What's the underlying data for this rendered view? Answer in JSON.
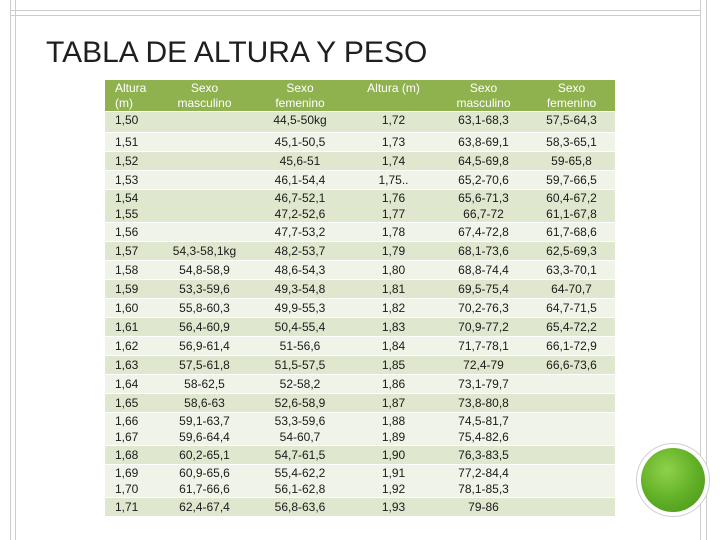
{
  "title": "TABLA DE ALTURA Y PESO",
  "header": {
    "col1": [
      "Altura",
      "(m)"
    ],
    "col2": [
      "Sexo",
      "masculino"
    ],
    "col3": [
      "Sexo",
      "femenino"
    ],
    "col4": [
      "Altura (m)"
    ],
    "col5": [
      "Sexo",
      "masculino"
    ],
    "col6": [
      "Sexo",
      "femenino"
    ]
  },
  "rows": [
    {
      "c1": [
        "1,50"
      ],
      "c2": [
        ""
      ],
      "c3": [
        "44,5-50kg"
      ],
      "c4": [
        "1,72"
      ],
      "c5": [
        "63,1-68,3"
      ],
      "c6": [
        "57,5-64,3"
      ]
    },
    {
      "c1": [
        "1,51"
      ],
      "c2": [
        ""
      ],
      "c3": [
        "45,1-50,5"
      ],
      "c4": [
        "1,73"
      ],
      "c5": [
        "63,8-69,1"
      ],
      "c6": [
        "58,3-65,1"
      ]
    },
    {
      "c1": [
        "1,52"
      ],
      "c2": [
        ""
      ],
      "c3": [
        "45,6-51"
      ],
      "c4": [
        "1,74"
      ],
      "c5": [
        "64,5-69,8"
      ],
      "c6": [
        "59-65,8"
      ]
    },
    {
      "c1": [
        "1,53"
      ],
      "c2": [
        ""
      ],
      "c3": [
        "46,1-54,4"
      ],
      "c4": [
        "1,75.."
      ],
      "c5": [
        "65,2-70,6"
      ],
      "c6": [
        "59,7-66,5"
      ]
    },
    {
      "c1": [
        "1,54",
        "1,55"
      ],
      "c2": [
        ""
      ],
      "c3": [
        "46,7-52,1",
        "47,2-52,6"
      ],
      "c4": [
        "1,76",
        "1,77"
      ],
      "c5": [
        "65,6-71,3",
        "66,7-72"
      ],
      "c6": [
        "60,4-67,2",
        "61,1-67,8"
      ]
    },
    {
      "c1": [
        "1,56"
      ],
      "c2": [
        ""
      ],
      "c3": [
        "47,7-53,2"
      ],
      "c4": [
        "1,78"
      ],
      "c5": [
        "67,4-72,8"
      ],
      "c6": [
        "61,7-68,6"
      ]
    },
    {
      "c1": [
        "1,57"
      ],
      "c2": [
        "54,3-58,1kg"
      ],
      "c3": [
        "48,2-53,7"
      ],
      "c4": [
        "1,79"
      ],
      "c5": [
        "68,1-73,6"
      ],
      "c6": [
        "62,5-69,3"
      ]
    },
    {
      "c1": [
        "1,58"
      ],
      "c2": [
        "54,8-58,9"
      ],
      "c3": [
        "48,6-54,3"
      ],
      "c4": [
        "1,80"
      ],
      "c5": [
        "68,8-74,4"
      ],
      "c6": [
        "63,3-70,1"
      ]
    },
    {
      "c1": [
        "1,59"
      ],
      "c2": [
        "53,3-59,6"
      ],
      "c3": [
        "49,3-54,8"
      ],
      "c4": [
        "1,81"
      ],
      "c5": [
        "69,5-75,4"
      ],
      "c6": [
        "64-70,7"
      ]
    },
    {
      "c1": [
        "1,60"
      ],
      "c2": [
        "55,8-60,3"
      ],
      "c3": [
        "49,9-55,3"
      ],
      "c4": [
        "1,82"
      ],
      "c5": [
        "70,2-76,3"
      ],
      "c6": [
        "64,7-71,5"
      ]
    },
    {
      "c1": [
        "1,61"
      ],
      "c2": [
        "56,4-60,9"
      ],
      "c3": [
        "50,4-55,4"
      ],
      "c4": [
        "1,83"
      ],
      "c5": [
        "70,9-77,2"
      ],
      "c6": [
        "65,4-72,2"
      ]
    },
    {
      "c1": [
        "1,62"
      ],
      "c2": [
        "56,9-61,4"
      ],
      "c3": [
        "51-56,6"
      ],
      "c4": [
        "1,84"
      ],
      "c5": [
        "71,7-78,1"
      ],
      "c6": [
        "66,1-72,9"
      ]
    },
    {
      "c1": [
        "1,63"
      ],
      "c2": [
        "57,5-61,8"
      ],
      "c3": [
        "51,5-57,5"
      ],
      "c4": [
        "1,85"
      ],
      "c5": [
        "72,4-79"
      ],
      "c6": [
        "66,6-73,6"
      ]
    },
    {
      "c1": [
        "1,64"
      ],
      "c2": [
        "58-62,5"
      ],
      "c3": [
        "52-58,2"
      ],
      "c4": [
        "1,86"
      ],
      "c5": [
        "73,1-79,7"
      ],
      "c6": [
        ""
      ]
    },
    {
      "c1": [
        "1,65"
      ],
      "c2": [
        "58,6-63"
      ],
      "c3": [
        "52,6-58,9"
      ],
      "c4": [
        "1,87"
      ],
      "c5": [
        "73,8-80,8"
      ],
      "c6": [
        ""
      ]
    },
    {
      "c1": [
        "1,66",
        "1,67"
      ],
      "c2": [
        "59,1-63,7",
        "59,6-64,4"
      ],
      "c3": [
        "53,3-59,6",
        "54-60,7"
      ],
      "c4": [
        "1,88",
        "1,89"
      ],
      "c5": [
        "74,5-81,7",
        "75,4-82,6"
      ],
      "c6": [
        ""
      ]
    },
    {
      "c1": [
        "1,68"
      ],
      "c2": [
        "60,2-65,1"
      ],
      "c3": [
        "54,7-61,5"
      ],
      "c4": [
        "1,90"
      ],
      "c5": [
        "76,3-83,5"
      ],
      "c6": [
        ""
      ]
    },
    {
      "c1": [
        "1,69",
        "1,70"
      ],
      "c2": [
        "60,9-65,6",
        "61,7-66,6"
      ],
      "c3": [
        "55,4-62,2",
        "56,1-62,8"
      ],
      "c4": [
        "1,91",
        "1,92"
      ],
      "c5": [
        "77,2-84,4",
        "78,1-85,3"
      ],
      "c6": [
        ""
      ]
    },
    {
      "c1": [
        "1,71"
      ],
      "c2": [
        "62,4-67,4"
      ],
      "c3": [
        "56,8-63,6"
      ],
      "c4": [
        "1,93"
      ],
      "c5": [
        "79-86"
      ],
      "c6": [
        ""
      ]
    }
  ],
  "colors": {
    "header_bg": "#8fb24f",
    "row_odd": "#dfe8cf",
    "row_even": "#f0f4e8",
    "accent_green": "#5fae25"
  }
}
